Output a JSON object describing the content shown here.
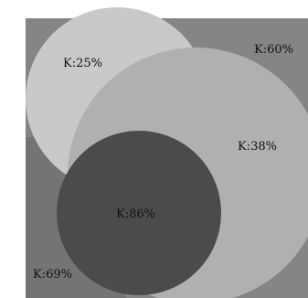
{
  "swatches": {
    "k60": {
      "label": "K:60%",
      "color": "#858585"
    },
    "k69": {
      "label": "K:69%",
      "color": "#747474"
    },
    "k25": {
      "label": "K:25%",
      "color": "#c9c9c9"
    },
    "k38": {
      "label": "K:38%",
      "color": "#b0b0b0"
    },
    "k86": {
      "label": "K:86%",
      "color": "#4b4b4b"
    }
  }
}
